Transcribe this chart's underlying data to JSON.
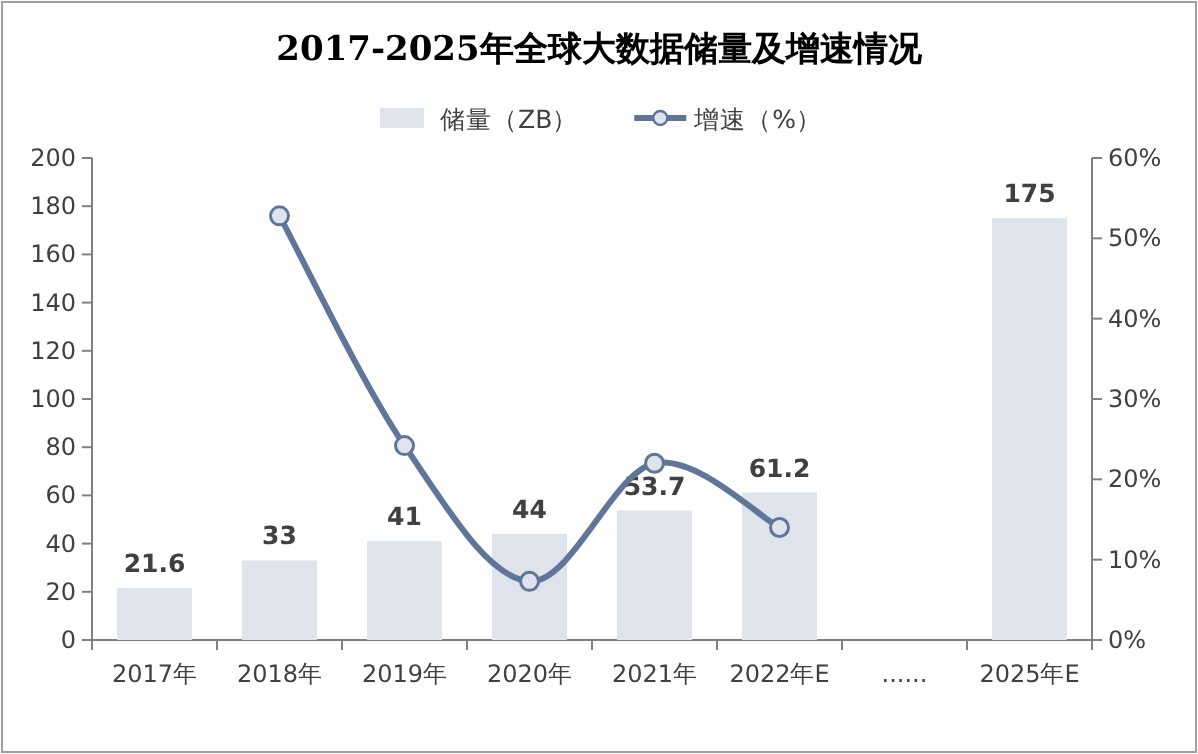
{
  "chart_data": {
    "type": "bar",
    "title": "2017-2025年全球大数据储量及增速情况",
    "categories": [
      "2017年",
      "2018年",
      "2019年",
      "2020年",
      "2021年",
      "2022年E",
      "......",
      "2025年E"
    ],
    "series": [
      {
        "name": "储量（ZB）",
        "color": "#dfe3ec",
        "values": [
          21.6,
          33,
          41,
          44,
          53.7,
          61.2,
          null,
          175
        ],
        "value_labels": [
          "21.6",
          "33",
          "41",
          "44",
          "53.7",
          "61.2",
          null,
          "175"
        ]
      },
      {
        "name": "增速（%）",
        "type": "line",
        "axis": "y2",
        "color": "#5f7599",
        "marker": "circle",
        "values": [
          null,
          52.8,
          24.2,
          7.3,
          22,
          14,
          null,
          null
        ]
      }
    ],
    "ylim": [
      0,
      200
    ],
    "yticks": [
      0,
      20,
      40,
      60,
      80,
      100,
      120,
      140,
      160,
      180,
      200
    ],
    "y2lim": [
      0,
      60
    ],
    "y2ticks": [
      {
        "value": 0,
        "label": "0%"
      },
      {
        "value": 10,
        "label": "10%"
      },
      {
        "value": 20,
        "label": "20%"
      },
      {
        "value": 30,
        "label": "30%"
      },
      {
        "value": 40,
        "label": "40%"
      },
      {
        "value": 50,
        "label": "50%"
      },
      {
        "value": 60,
        "label": "60%"
      }
    ],
    "legend": "top",
    "grid": false
  }
}
